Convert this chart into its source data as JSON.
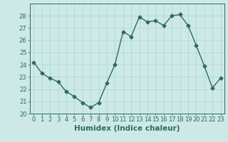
{
  "x": [
    0,
    1,
    2,
    3,
    4,
    5,
    6,
    7,
    8,
    9,
    10,
    11,
    12,
    13,
    14,
    15,
    16,
    17,
    18,
    19,
    20,
    21,
    22,
    23
  ],
  "y": [
    24.2,
    23.3,
    22.9,
    22.6,
    21.8,
    21.4,
    20.9,
    20.5,
    20.9,
    22.5,
    24.0,
    26.7,
    26.3,
    27.9,
    27.5,
    27.6,
    27.2,
    28.0,
    28.1,
    27.2,
    25.6,
    23.9,
    22.1,
    22.9
  ],
  "line_color": "#2e6b5e",
  "marker": "D",
  "marker_size": 2.5,
  "bg_color": "#cce9e8",
  "grid_color": "#afd4d2",
  "xlabel": "Humidex (Indice chaleur)",
  "ylim": [
    20,
    29
  ],
  "xlim": [
    -0.5,
    23.5
  ],
  "yticks": [
    20,
    21,
    22,
    23,
    24,
    25,
    26,
    27,
    28
  ],
  "xticks": [
    0,
    1,
    2,
    3,
    4,
    5,
    6,
    7,
    8,
    9,
    10,
    11,
    12,
    13,
    14,
    15,
    16,
    17,
    18,
    19,
    20,
    21,
    22,
    23
  ],
  "tick_label_size": 6.0,
  "xlabel_fontsize": 7.5,
  "axis_color": "#2e6b5e",
  "linewidth": 1.0
}
